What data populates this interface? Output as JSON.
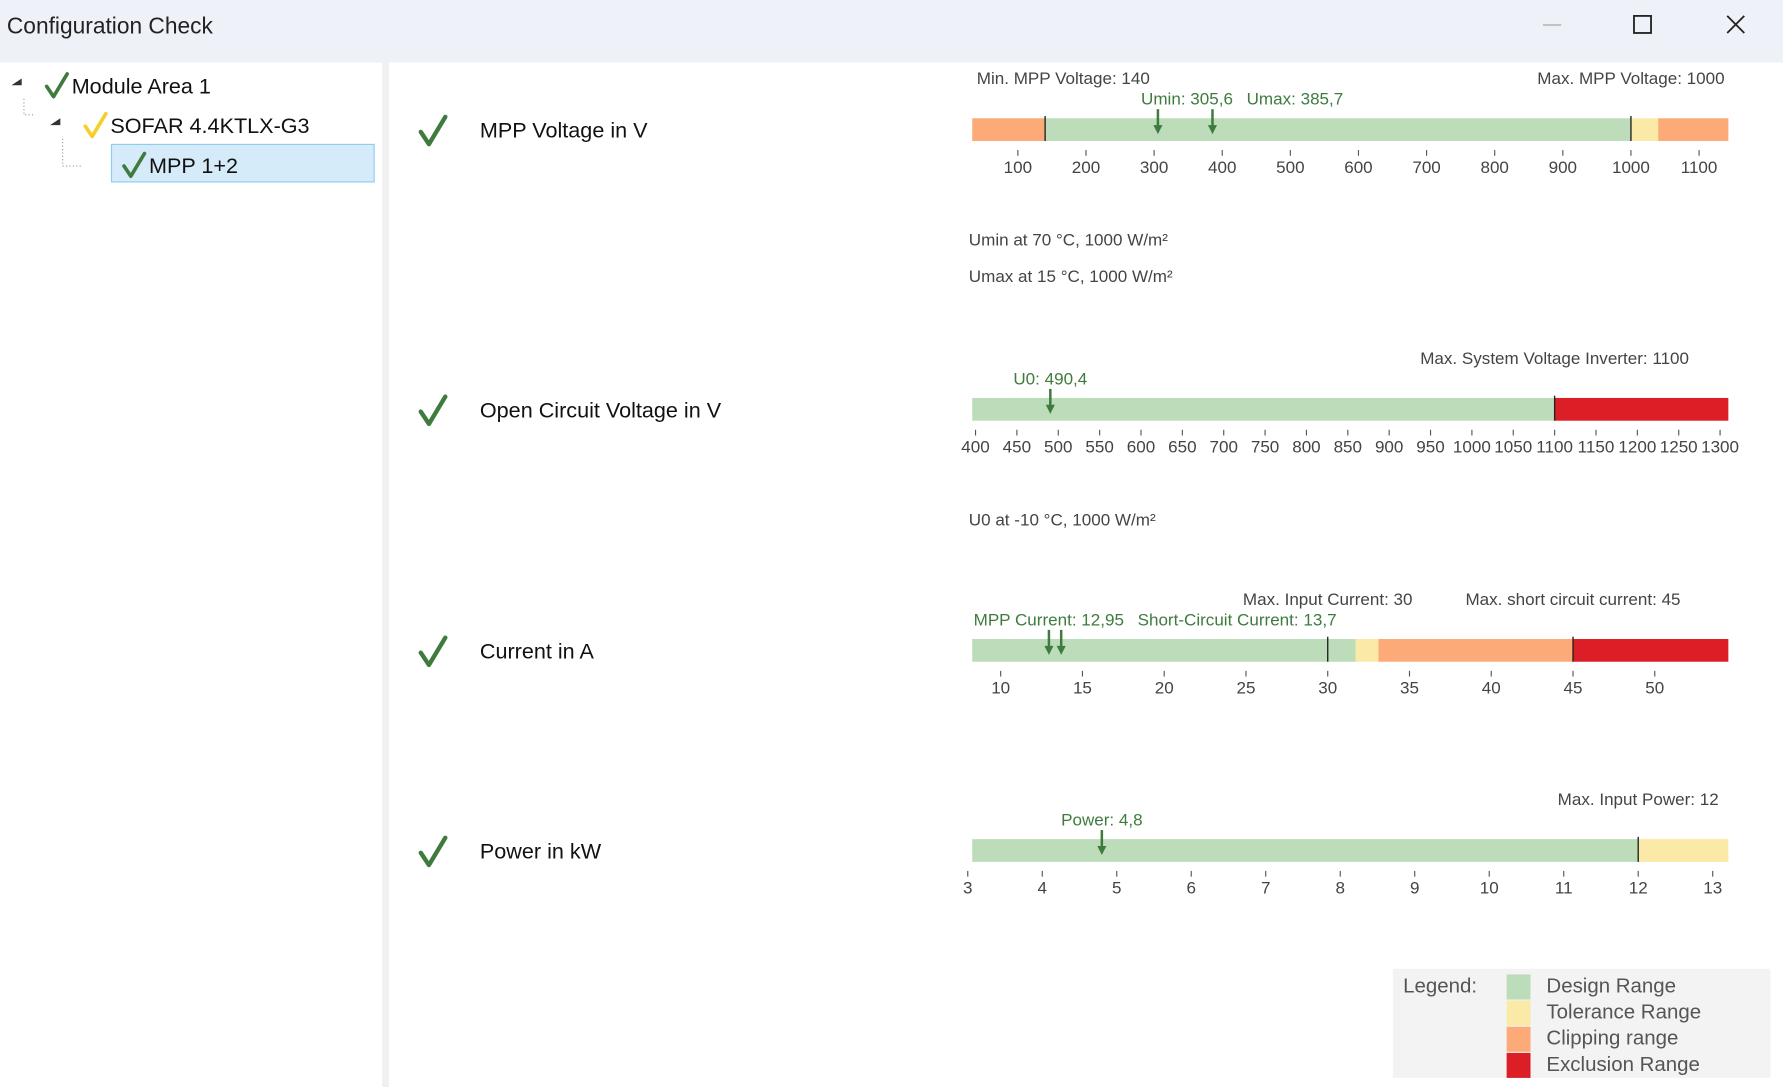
{
  "window": {
    "title": "Configuration Check"
  },
  "tree": [
    {
      "label": "Module Area 1",
      "status": "ok"
    },
    {
      "label": "SOFAR 4.4KTLX-G3",
      "status": "warn"
    },
    {
      "label": "MPP 1+2",
      "status": "ok",
      "selected": true
    }
  ],
  "checks": [
    {
      "label": "MPP Voltage in V",
      "status": "ok",
      "xlim": [
        33,
        1143
      ],
      "xticks": [
        100,
        200,
        300,
        400,
        500,
        600,
        700,
        800,
        900,
        1000,
        1100
      ],
      "ranges": [
        {
          "from": 33,
          "to": 140,
          "color": "#fcaa78"
        },
        {
          "from": 140,
          "to": 1000,
          "color": "#bddcb9"
        },
        {
          "from": 1000,
          "to": 1040,
          "color": "#fbe9a7"
        },
        {
          "from": 1040,
          "to": 1143,
          "color": "#fcaa78"
        }
      ],
      "limits": [
        {
          "value": 140,
          "label": "Min. MPP Voltage: 140"
        },
        {
          "value": 1000,
          "label": "Max. MPP Voltage: 1000"
        }
      ],
      "markers": [
        {
          "value": 305.6,
          "label": "Umin: 305,6"
        },
        {
          "value": 385.7,
          "label": "Umax: 385,7"
        }
      ],
      "notes": [
        "Umin at 70 °C, 1000 W/m²",
        "Umax at 15 °C, 1000 W/m²"
      ]
    },
    {
      "label": "Open Circuit Voltage in V",
      "status": "ok",
      "xlim": [
        396,
        1310
      ],
      "xticks": [
        400,
        450,
        500,
        550,
        600,
        650,
        700,
        750,
        800,
        850,
        900,
        950,
        1000,
        1050,
        1100,
        1150,
        1200,
        1250,
        1300
      ],
      "ranges": [
        {
          "from": 396,
          "to": 1100,
          "color": "#bddcb9"
        },
        {
          "from": 1100,
          "to": 1310,
          "color": "#dc1f26"
        }
      ],
      "limits": [
        {
          "value": 1100,
          "label": "Max. System Voltage Inverter: 1100"
        }
      ],
      "markers": [
        {
          "value": 490.4,
          "label": "U0: 490,4"
        }
      ],
      "notes": [
        "U0 at -10 °C, 1000 W/m²"
      ]
    },
    {
      "label": "Current in A",
      "status": "ok",
      "xlim": [
        8.26,
        54.5
      ],
      "xticks": [
        10,
        15,
        20,
        25,
        30,
        35,
        40,
        45,
        50
      ],
      "ranges": [
        {
          "from": 8.26,
          "to": 31.7,
          "color": "#bddcb9"
        },
        {
          "from": 31.7,
          "to": 33.1,
          "color": "#fbe9a7"
        },
        {
          "from": 33.1,
          "to": 45,
          "color": "#fcaa78"
        },
        {
          "from": 45,
          "to": 54.5,
          "color": "#dc1f26"
        }
      ],
      "limits": [
        {
          "value": 30,
          "label": "Max. Input Current: 30"
        },
        {
          "value": 45,
          "label": "Max. short circuit current: 45"
        }
      ],
      "markers": [
        {
          "value": 12.95,
          "label": "MPP Current: 12,95"
        },
        {
          "value": 13.7,
          "label": "Short-Circuit Current: 13,7"
        }
      ]
    },
    {
      "label": "Power in kW",
      "status": "ok",
      "xlim": [
        3.06,
        13.21
      ],
      "xticks": [
        3,
        4,
        5,
        6,
        7,
        8,
        9,
        10,
        11,
        12,
        13
      ],
      "ranges": [
        {
          "from": 3.06,
          "to": 12,
          "color": "#bddcb9"
        },
        {
          "from": 12,
          "to": 13.21,
          "color": "#fbe9a7"
        }
      ],
      "limits": [
        {
          "value": 12,
          "label": "Max. Input Power: 12"
        }
      ],
      "markers": [
        {
          "value": 4.8,
          "label": "Power: 4,8"
        }
      ]
    }
  ],
  "legend": {
    "title": "Legend:",
    "items": [
      {
        "label": "Design Range",
        "color": "#bddcb9"
      },
      {
        "label": "Tolerance Range",
        "color": "#fbe9a7"
      },
      {
        "label": "Clipping range",
        "color": "#fcaa78"
      },
      {
        "label": "Exclusion Range",
        "color": "#dc1f26"
      }
    ]
  }
}
